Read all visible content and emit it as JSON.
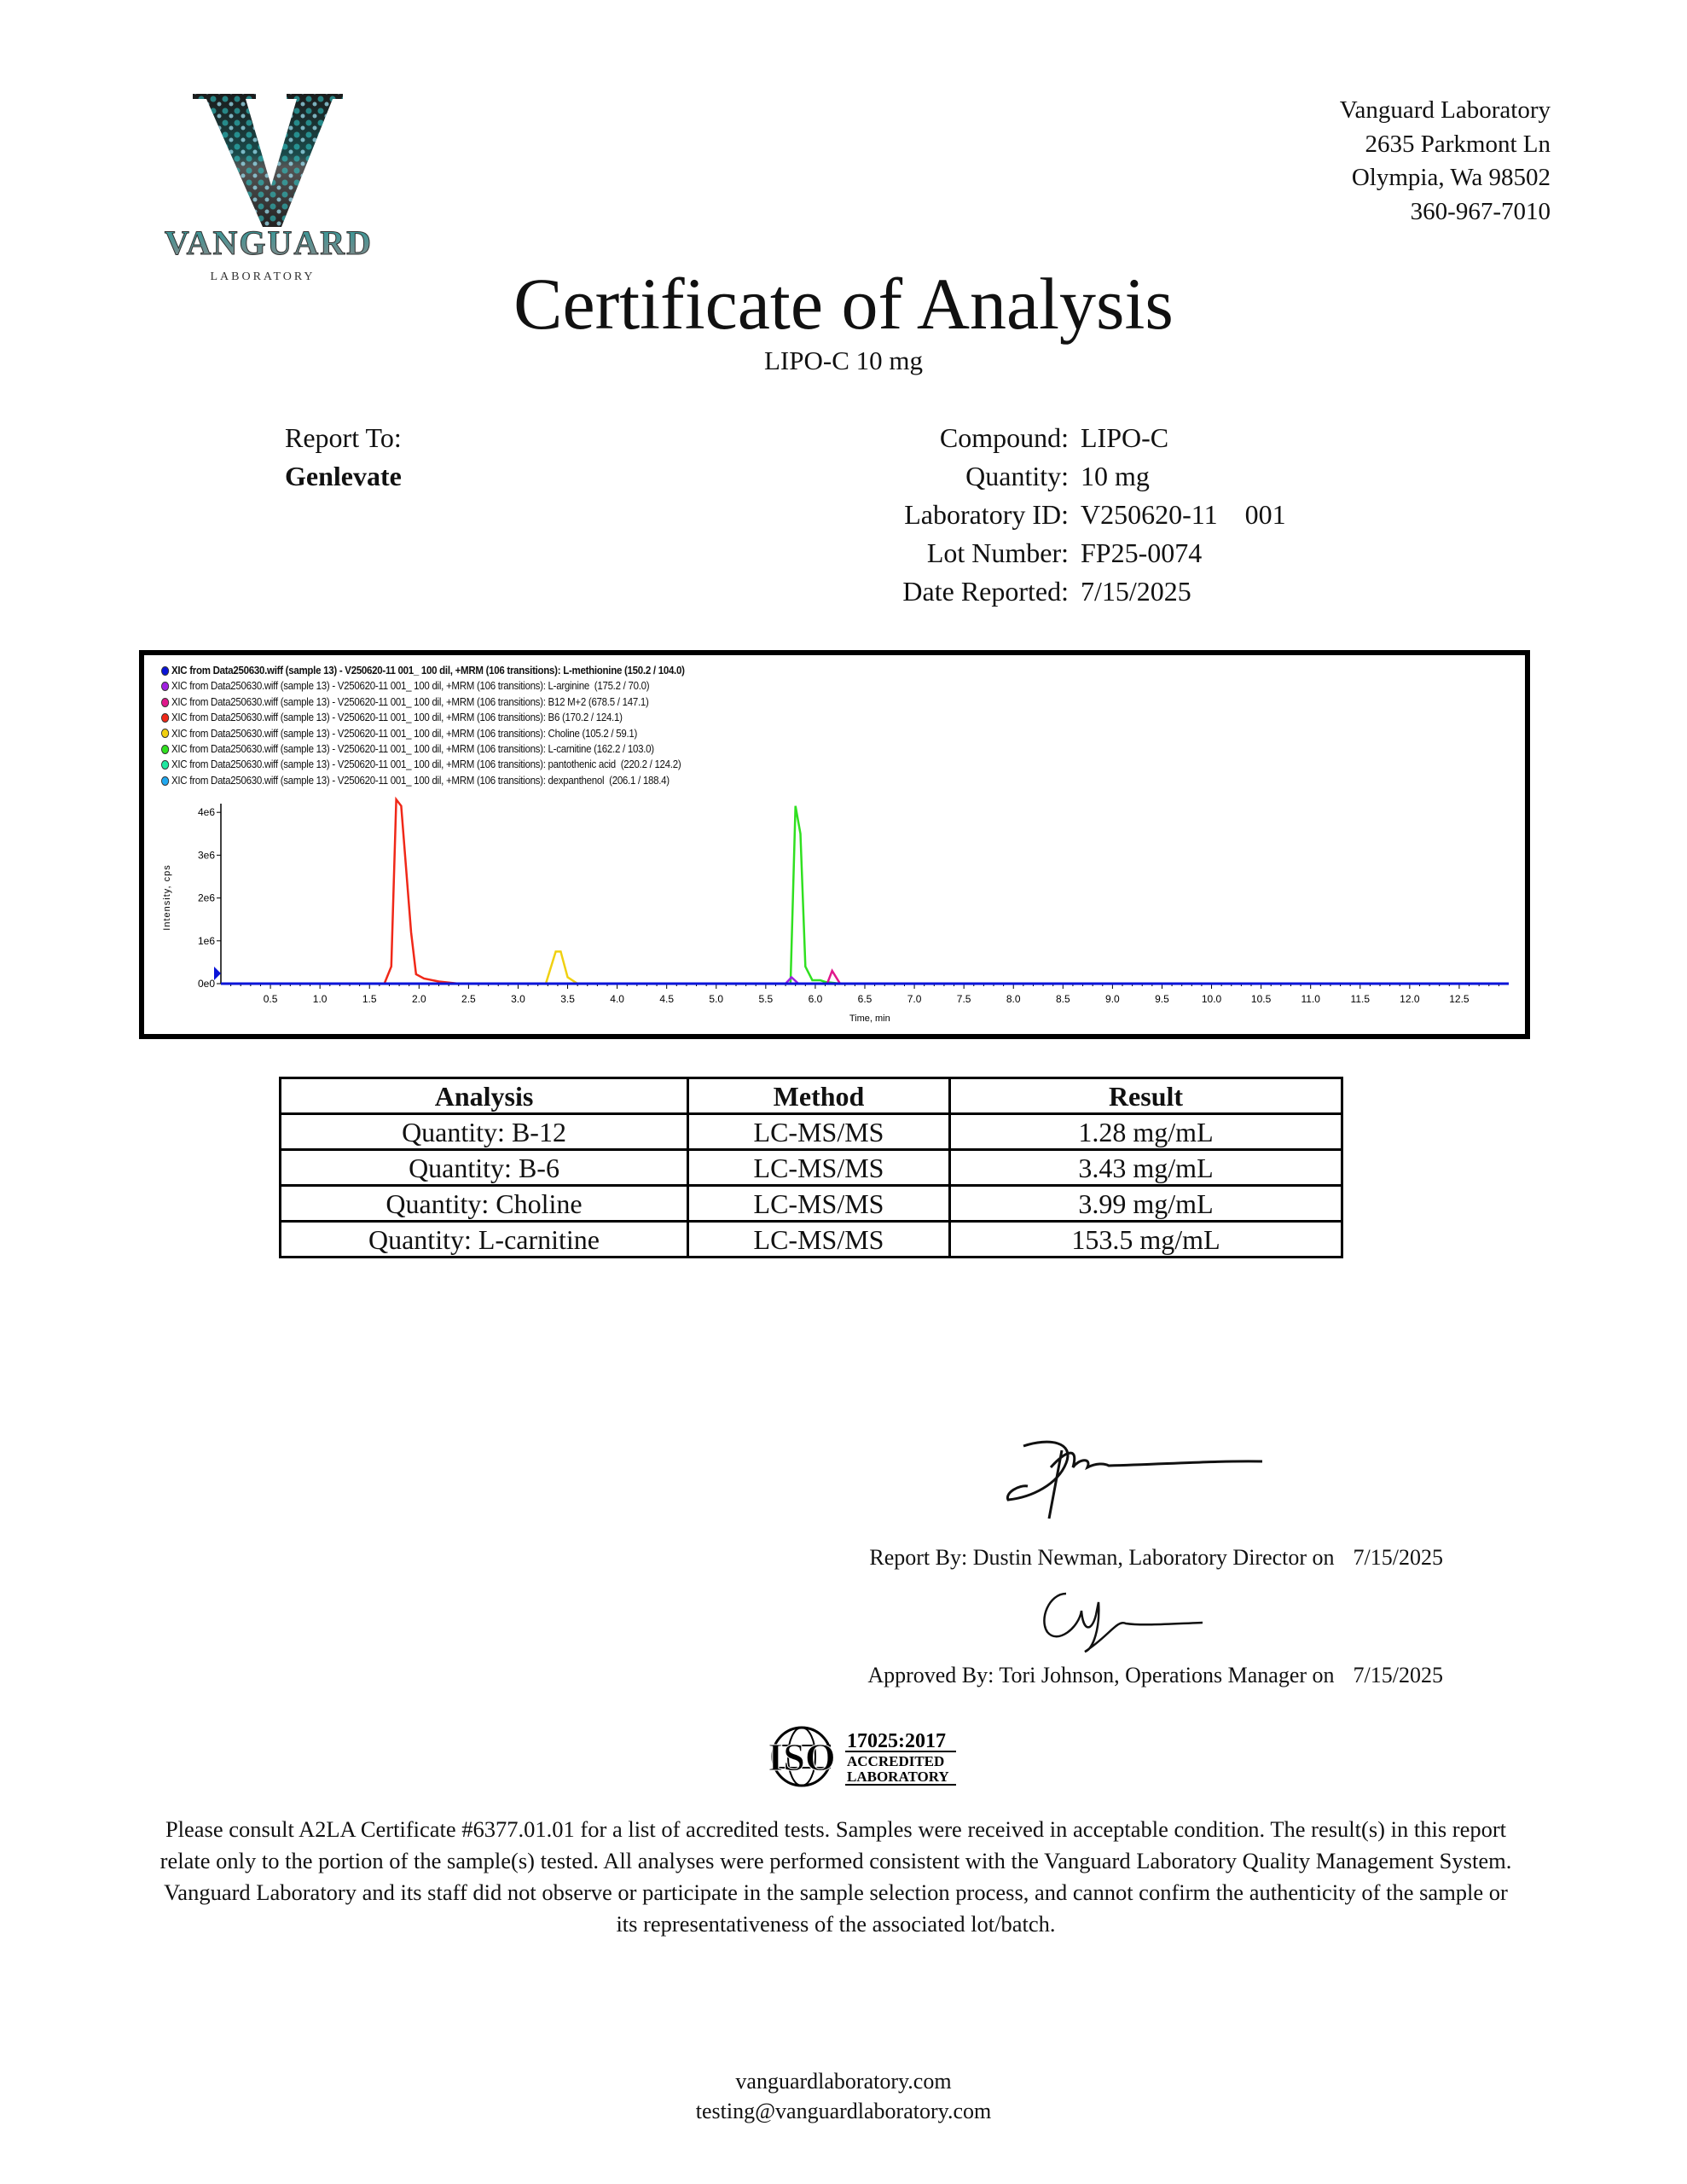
{
  "logo": {
    "name": "VANGUARD",
    "sub": "LABORATORY",
    "colors": {
      "teal": "#2ec4c4",
      "silver": "#b8b8b8"
    }
  },
  "address": [
    "Vanguard Laboratory",
    "2635 Parkmont Ln",
    "Olympia, Wa 98502",
    "360-967-7010"
  ],
  "header": {
    "title": "Certificate of Analysis",
    "subtitle": "LIPO-C 10 mg"
  },
  "report_to": {
    "label": "Report To:",
    "client": "Genlevate"
  },
  "info": [
    {
      "label": "Compound:",
      "value": "LIPO-C"
    },
    {
      "label": "Quantity:",
      "value": "10 mg"
    },
    {
      "label": "Laboratory ID:",
      "value": "V250620-11    001"
    },
    {
      "label": "Lot Number:",
      "value": "FP25-0074"
    },
    {
      "label": "Date Reported:",
      "value": "7/15/2025"
    }
  ],
  "chart_data": {
    "type": "line",
    "xlabel": "Time, min",
    "ylabel": "Intensity, cps",
    "xlim": [
      0,
      13
    ],
    "ylim": [
      0,
      4350000
    ],
    "xticks": [
      "0.5",
      "1.0",
      "1.5",
      "2.0",
      "2.5",
      "3.0",
      "3.5",
      "4.0",
      "4.5",
      "5.0",
      "5.5",
      "6.0",
      "6.5",
      "7.0",
      "7.5",
      "8.0",
      "8.5",
      "9.0",
      "9.5",
      "10.0",
      "10.5",
      "11.0",
      "11.5",
      "12.0",
      "12.5"
    ],
    "yticks": [
      {
        "v": 0,
        "label": "0e0"
      },
      {
        "v": 1000000,
        "label": "1e6"
      },
      {
        "v": 2000000,
        "label": "2e6"
      },
      {
        "v": 3000000,
        "label": "3e6"
      },
      {
        "v": 4000000,
        "label": "4e6"
      }
    ],
    "grid": false,
    "legend_position": "top-left",
    "series": [
      {
        "name": "XIC from Data250630.wiff (sample 13) - V250620-11 001_ 100 dil, +MRM (106 transitions): L-methionine (150.2 / 104.0)",
        "color": "#0a14d8",
        "points": [
          [
            0,
            0
          ],
          [
            13,
            0
          ]
        ]
      },
      {
        "name": "XIC from Data250630.wiff (sample 13) - V250620-11 001_ 100 dil, +MRM (106 transitions): L-arginine  (175.2 / 70.0)",
        "color": "#a020e0",
        "points": [
          [
            0,
            0
          ],
          [
            5.7,
            0
          ],
          [
            5.76,
            150000
          ],
          [
            5.83,
            0
          ],
          [
            13,
            0
          ]
        ]
      },
      {
        "name": "XIC from Data250630.wiff (sample 13) - V250620-11 001_ 100 dil, +MRM (106 transitions): B12 M+2 (678.5 / 147.1)",
        "color": "#e0188c",
        "points": [
          [
            0,
            0
          ],
          [
            6.12,
            0
          ],
          [
            6.17,
            300000
          ],
          [
            6.25,
            0
          ],
          [
            13,
            0
          ]
        ]
      },
      {
        "name": "XIC from Data250630.wiff (sample 13) - V250620-11 001_ 100 dil, +MRM (106 transitions): B6 (170.2 / 124.1)",
        "color": "#f02818",
        "points": [
          [
            0,
            0
          ],
          [
            1.65,
            0
          ],
          [
            1.72,
            400000
          ],
          [
            1.77,
            4300000
          ],
          [
            1.82,
            4150000
          ],
          [
            1.92,
            1200000
          ],
          [
            1.97,
            220000
          ],
          [
            2.05,
            120000
          ],
          [
            2.2,
            50000
          ],
          [
            2.4,
            0
          ],
          [
            13,
            0
          ]
        ]
      },
      {
        "name": "XIC from Data250630.wiff (sample 13) - V250620-11 001_ 100 dil, +MRM (106 transitions): Choline (105.2 / 59.1)",
        "color": "#f0d010",
        "points": [
          [
            0,
            0
          ],
          [
            3.28,
            0
          ],
          [
            3.38,
            750000
          ],
          [
            3.43,
            750000
          ],
          [
            3.5,
            150000
          ],
          [
            3.6,
            0
          ],
          [
            13,
            0
          ]
        ]
      },
      {
        "name": "XIC from Data250630.wiff (sample 13) - V250620-11 001_ 100 dil, +MRM (106 transitions): L-carnitine (162.2 / 103.0)",
        "color": "#30e020",
        "points": [
          [
            0,
            0
          ],
          [
            5.75,
            0
          ],
          [
            5.8,
            4150000
          ],
          [
            5.85,
            3500000
          ],
          [
            5.9,
            400000
          ],
          [
            5.97,
            80000
          ],
          [
            6.05,
            80000
          ],
          [
            6.1,
            40000
          ],
          [
            6.25,
            0
          ],
          [
            13,
            0
          ]
        ]
      },
      {
        "name": "XIC from Data250630.wiff (sample 13) - V250620-11 001_ 100 dil, +MRM (106 transitions): pantothenic acid  (220.2 / 124.2)",
        "color": "#20e8a0",
        "points": [
          [
            0,
            0
          ],
          [
            13,
            0
          ]
        ]
      },
      {
        "name": "XIC from Data250630.wiff (sample 13) - V250620-11 001_ 100 dil, +MRM (106 transitions): dexpanthenol  (206.1 / 188.4)",
        "color": "#20a8f0",
        "points": [
          [
            0,
            0
          ],
          [
            13,
            0
          ]
        ]
      }
    ]
  },
  "results_table": {
    "headers": [
      "Analysis",
      "Method",
      "Result"
    ],
    "rows": [
      [
        "Quantity: B-12",
        "LC-MS/MS",
        "1.28 mg/mL"
      ],
      [
        "Quantity: B-6",
        "LC-MS/MS",
        "3.43 mg/mL"
      ],
      [
        "Quantity: Choline",
        "LC-MS/MS",
        "3.99 mg/mL"
      ],
      [
        "Quantity: L-carnitine",
        "LC-MS/MS",
        "153.5 mg/mL"
      ]
    ]
  },
  "signatures": {
    "report_by": "Report By: Dustin Newman, Laboratory Director on",
    "report_date": "7/15/2025",
    "approved_by": "Approved By: Tori Johnson, Operations Manager on",
    "approved_date": "7/15/2025"
  },
  "iso_badge": {
    "mark": "ISO",
    "standard": "17025:2017",
    "line1": "ACCREDITED",
    "line2": "LABORATORY"
  },
  "disclaimer": "Please consult A2LA Certificate #6377.01.01 for a list of accredited tests. Samples were received in acceptable condition. The result(s) in this report relate only to the portion of the sample(s) tested. All analyses were performed consistent with the Vanguard Laboratory Quality Management System. Vanguard Laboratory and its staff did not observe or participate in the sample selection process, and cannot confirm the authenticity of the sample or its representativeness of the associated lot/batch.",
  "footer": {
    "website": "vanguardlaboratory.com",
    "email": "testing@vanguardlaboratory.com"
  }
}
